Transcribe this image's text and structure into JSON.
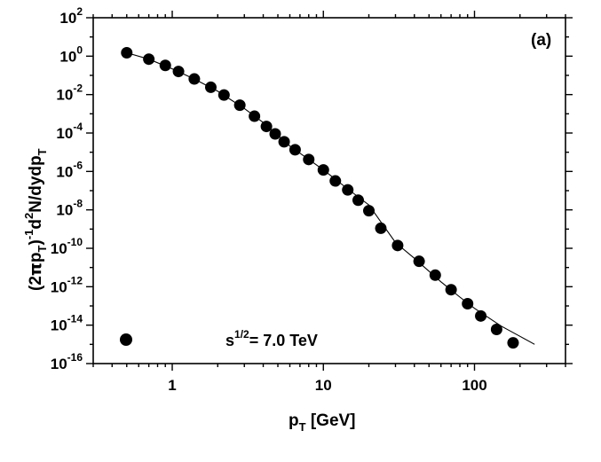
{
  "chart_data": {
    "type": "scatter",
    "x_scale": "log",
    "y_scale": "log",
    "xlim": [
      0.3,
      400
    ],
    "ylim": [
      1e-16,
      100
    ],
    "x_major_ticks": [
      1,
      10,
      100
    ],
    "x_tick_labels": [
      "1",
      "10",
      "100"
    ],
    "y_major_ticks": [
      {
        "base": "10",
        "exp": "2",
        "value": 100
      },
      {
        "base": "10",
        "exp": "0",
        "value": 1
      },
      {
        "base": "10",
        "exp": "-2",
        "value": 0.01
      },
      {
        "base": "10",
        "exp": "-4",
        "value": 0.0001
      },
      {
        "base": "10",
        "exp": "-6",
        "value": 1e-06
      },
      {
        "base": "10",
        "exp": "-8",
        "value": 1e-08
      },
      {
        "base": "10",
        "exp": "-10",
        "value": 1e-10
      },
      {
        "base": "10",
        "exp": "-12",
        "value": 1e-12
      },
      {
        "base": "10",
        "exp": "-14",
        "value": 1e-14
      },
      {
        "base": "10",
        "exp": "-16",
        "value": 1e-16
      }
    ],
    "xlabel": {
      "main": "p",
      "sub": "T",
      "rest": " [GeV]"
    },
    "ylabel": {
      "p1": "(2",
      "pi": "π",
      "p2": "p",
      "sub1": "T",
      "p3": ")",
      "sup1": "-1",
      "p4": "d",
      "sup2": "2",
      "p5": "N/dydp",
      "sub2": "T"
    },
    "panel_label": "(a)",
    "legend": {
      "base": "s",
      "sup": "1/2",
      "rest": "= 7.0 TeV"
    },
    "grid": false,
    "series": [
      {
        "marker": "filled-circle",
        "x": [
          0.5,
          0.7,
          0.9,
          1.1,
          1.4,
          1.8,
          2.2,
          2.8,
          3.5,
          4.2,
          4.8,
          5.5,
          6.5,
          8.0,
          10.0,
          12.0,
          14.5,
          17.0,
          20.0,
          24.0,
          31.0,
          43.0,
          55.0,
          70.0,
          90.0,
          110.0,
          140.0,
          180.0
        ],
        "y": [
          1.5,
          0.7,
          0.33,
          0.16,
          0.065,
          0.024,
          0.0095,
          0.0028,
          0.00075,
          0.00022,
          9e-05,
          3.5e-05,
          1.35e-05,
          4.2e-06,
          1.2e-06,
          3.2e-07,
          1.1e-07,
          3.2e-08,
          9e-09,
          1.1e-09,
          1.4e-10,
          2.1e-11,
          4e-12,
          7e-13,
          1.3e-13,
          3e-14,
          6e-15,
          1.2e-15
        ]
      }
    ],
    "fit_line": {
      "x": [
        0.5,
        0.7,
        1.0,
        1.4,
        2.0,
        3.0,
        4.0,
        6.0,
        8.0,
        10.0,
        15.0,
        20.0,
        30.0,
        40.0,
        60.0,
        80.0,
        100.0,
        150.0,
        200.0,
        250.0
      ],
      "y": [
        1.5,
        0.7,
        0.22,
        0.065,
        0.015,
        0.0019,
        0.00035,
        2.1e-05,
        4.2e-06,
        1.2e-06,
        1e-07,
        1.8e-08,
        2e-10,
        3e-11,
        1.8e-12,
        2.9e-13,
        7.5e-14,
        9e-15,
        2.6e-15,
        1e-15
      ]
    }
  }
}
